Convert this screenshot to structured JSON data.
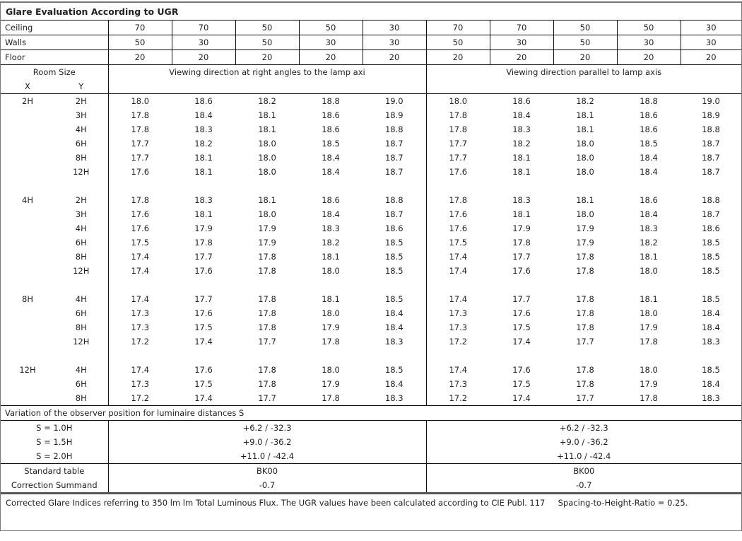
{
  "title": "Glare Evaluation According to UGR",
  "reflectances": [
    {
      "label": "Ceiling",
      "values": [
        "70",
        "70",
        "50",
        "50",
        "30",
        "70",
        "70",
        "50",
        "50",
        "30"
      ]
    },
    {
      "label": "Walls",
      "values": [
        "50",
        "30",
        "50",
        "30",
        "30",
        "50",
        "30",
        "50",
        "30",
        "30"
      ]
    },
    {
      "label": "Floor",
      "values": [
        "20",
        "20",
        "20",
        "20",
        "20",
        "20",
        "20",
        "20",
        "20",
        "20"
      ]
    }
  ],
  "header": {
    "room_size": "Room Size",
    "x": "X",
    "y": "Y",
    "left_direction": "Viewing direction at right angles to the lamp axi",
    "right_direction": "Viewing direction parallel to lamp axis"
  },
  "groups": [
    {
      "x": "2H",
      "rows": [
        {
          "y": "2H",
          "values": [
            "18.0",
            "18.6",
            "18.2",
            "18.8",
            "19.0",
            "18.0",
            "18.6",
            "18.2",
            "18.8",
            "19.0"
          ]
        },
        {
          "y": "3H",
          "values": [
            "17.8",
            "18.4",
            "18.1",
            "18.6",
            "18.9",
            "17.8",
            "18.4",
            "18.1",
            "18.6",
            "18.9"
          ]
        },
        {
          "y": "4H",
          "values": [
            "17.8",
            "18.3",
            "18.1",
            "18.6",
            "18.8",
            "17.8",
            "18.3",
            "18.1",
            "18.6",
            "18.8"
          ]
        },
        {
          "y": "6H",
          "values": [
            "17.7",
            "18.2",
            "18.0",
            "18.5",
            "18.7",
            "17.7",
            "18.2",
            "18.0",
            "18.5",
            "18.7"
          ]
        },
        {
          "y": "8H",
          "values": [
            "17.7",
            "18.1",
            "18.0",
            "18.4",
            "18.7",
            "17.7",
            "18.1",
            "18.0",
            "18.4",
            "18.7"
          ]
        },
        {
          "y": "12H",
          "values": [
            "17.6",
            "18.1",
            "18.0",
            "18.4",
            "18.7",
            "17.6",
            "18.1",
            "18.0",
            "18.4",
            "18.7"
          ]
        }
      ]
    },
    {
      "x": "4H",
      "rows": [
        {
          "y": "2H",
          "values": [
            "17.8",
            "18.3",
            "18.1",
            "18.6",
            "18.8",
            "17.8",
            "18.3",
            "18.1",
            "18.6",
            "18.8"
          ]
        },
        {
          "y": "3H",
          "values": [
            "17.6",
            "18.1",
            "18.0",
            "18.4",
            "18.7",
            "17.6",
            "18.1",
            "18.0",
            "18.4",
            "18.7"
          ]
        },
        {
          "y": "4H",
          "values": [
            "17.6",
            "17.9",
            "17.9",
            "18.3",
            "18.6",
            "17.6",
            "17.9",
            "17.9",
            "18.3",
            "18.6"
          ]
        },
        {
          "y": "6H",
          "values": [
            "17.5",
            "17.8",
            "17.9",
            "18.2",
            "18.5",
            "17.5",
            "17.8",
            "17.9",
            "18.2",
            "18.5"
          ]
        },
        {
          "y": "8H",
          "values": [
            "17.4",
            "17.7",
            "17.8",
            "18.1",
            "18.5",
            "17.4",
            "17.7",
            "17.8",
            "18.1",
            "18.5"
          ]
        },
        {
          "y": "12H",
          "values": [
            "17.4",
            "17.6",
            "17.8",
            "18.0",
            "18.5",
            "17.4",
            "17.6",
            "17.8",
            "18.0",
            "18.5"
          ]
        }
      ]
    },
    {
      "x": "8H",
      "rows": [
        {
          "y": "4H",
          "values": [
            "17.4",
            "17.7",
            "17.8",
            "18.1",
            "18.5",
            "17.4",
            "17.7",
            "17.8",
            "18.1",
            "18.5"
          ]
        },
        {
          "y": "6H",
          "values": [
            "17.3",
            "17.6",
            "17.8",
            "18.0",
            "18.4",
            "17.3",
            "17.6",
            "17.8",
            "18.0",
            "18.4"
          ]
        },
        {
          "y": "8H",
          "values": [
            "17.3",
            "17.5",
            "17.8",
            "17.9",
            "18.4",
            "17.3",
            "17.5",
            "17.8",
            "17.9",
            "18.4"
          ]
        },
        {
          "y": "12H",
          "values": [
            "17.2",
            "17.4",
            "17.7",
            "17.8",
            "18.3",
            "17.2",
            "17.4",
            "17.7",
            "17.8",
            "18.3"
          ]
        }
      ]
    },
    {
      "x": "12H",
      "rows": [
        {
          "y": "4H",
          "values": [
            "17.4",
            "17.6",
            "17.8",
            "18.0",
            "18.5",
            "17.4",
            "17.6",
            "17.8",
            "18.0",
            "18.5"
          ]
        },
        {
          "y": "6H",
          "values": [
            "17.3",
            "17.5",
            "17.8",
            "17.9",
            "18.4",
            "17.3",
            "17.5",
            "17.8",
            "17.9",
            "18.4"
          ]
        },
        {
          "y": "8H",
          "values": [
            "17.2",
            "17.4",
            "17.7",
            "17.8",
            "18.3",
            "17.2",
            "17.4",
            "17.7",
            "17.8",
            "18.3"
          ]
        }
      ]
    }
  ],
  "variation": {
    "label": "Variation of the observer position for luminaire distances S",
    "rows": [
      {
        "s": "S = 1.0H",
        "left": "+6.2 / -32.3",
        "right": "+6.2 / -32.3"
      },
      {
        "s": "S = 1.5H",
        "left": "+9.0 / -36.2",
        "right": "+9.0 / -36.2"
      },
      {
        "s": "S = 2.0H",
        "left": "+11.0 / -42.4",
        "right": "+11.0 / -42.4"
      }
    ]
  },
  "standard": [
    {
      "label": "Standard table",
      "left": "BK00",
      "right": "BK00"
    },
    {
      "label": "Correction Summand",
      "left": "-0.7",
      "right": "-0.7"
    }
  ],
  "footer": "Corrected Glare Indices referring to 350 lm lm Total Luminous Flux. The UGR values have been calculated according to CIE Publ. 117     Spacing-to-Height-Ratio = 0.25."
}
